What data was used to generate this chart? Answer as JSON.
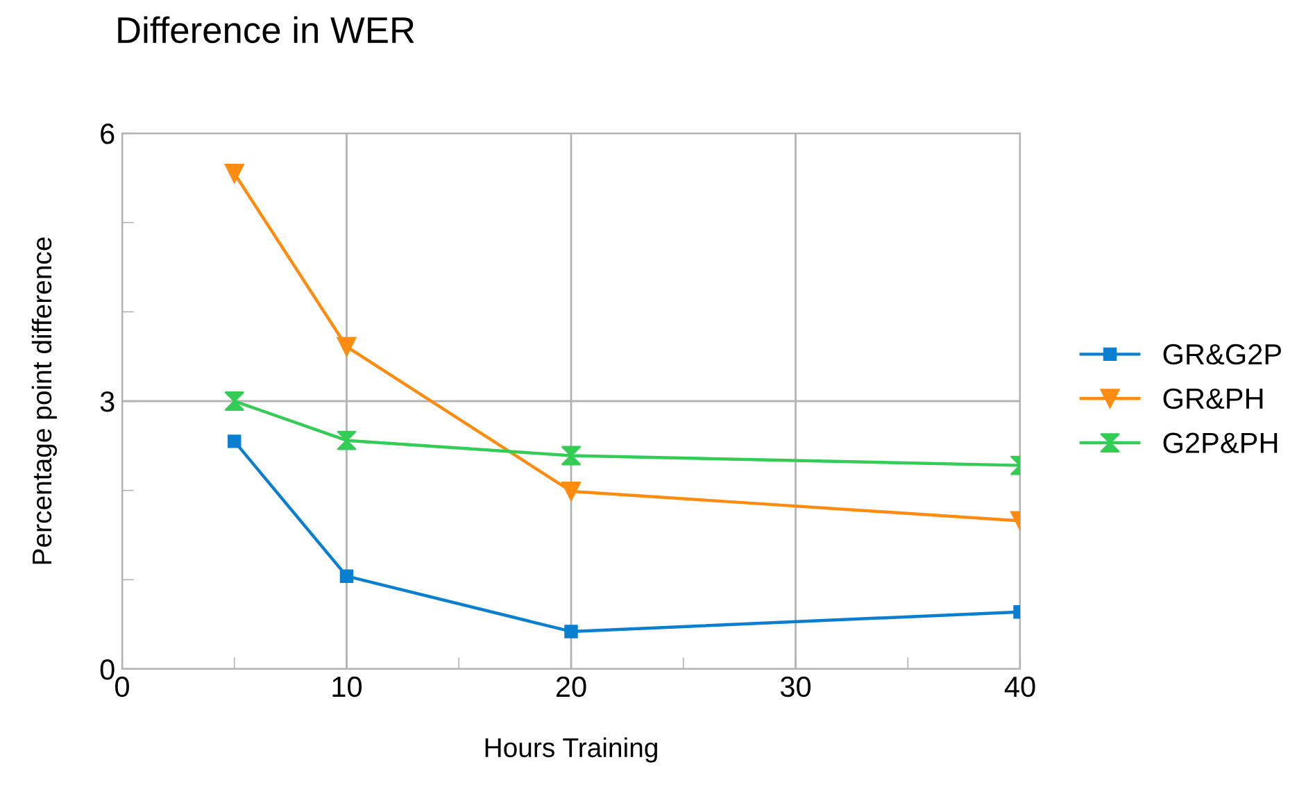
{
  "chart_data": {
    "type": "line",
    "title": "Difference in WER",
    "xlabel": "Hours Training",
    "ylabel": "Percentage point difference",
    "x": [
      5,
      10,
      20,
      40
    ],
    "series": [
      {
        "name": "GR&G2P",
        "color": "#0a7fd0",
        "marker": "square",
        "values": [
          2.55,
          1.04,
          0.42,
          0.64
        ]
      },
      {
        "name": "GR&PH",
        "color": "#ff8c10",
        "marker": "triangle",
        "values": [
          5.55,
          3.61,
          1.99,
          1.66
        ]
      },
      {
        "name": "G2P&PH",
        "color": "#33cc55",
        "marker": "diamond",
        "values": [
          3.0,
          2.56,
          2.39,
          2.28
        ]
      }
    ],
    "xlim": [
      0,
      40
    ],
    "xticks": [
      0,
      {
        "value": 5,
        "label": null
      },
      10,
      {
        "value": 15,
        "label": null
      },
      20,
      {
        "value": 25,
        "label": null
      },
      30,
      {
        "value": 35,
        "label": null
      },
      40
    ],
    "ylim": [
      0,
      6
    ],
    "yticks": [
      0,
      {
        "value": 1,
        "label": null
      },
      {
        "value": 2,
        "label": null
      },
      3,
      {
        "value": 4,
        "label": null
      },
      {
        "value": 5,
        "label": null
      },
      6
    ],
    "grid": true,
    "legend": "right",
    "line_style": "solid"
  }
}
